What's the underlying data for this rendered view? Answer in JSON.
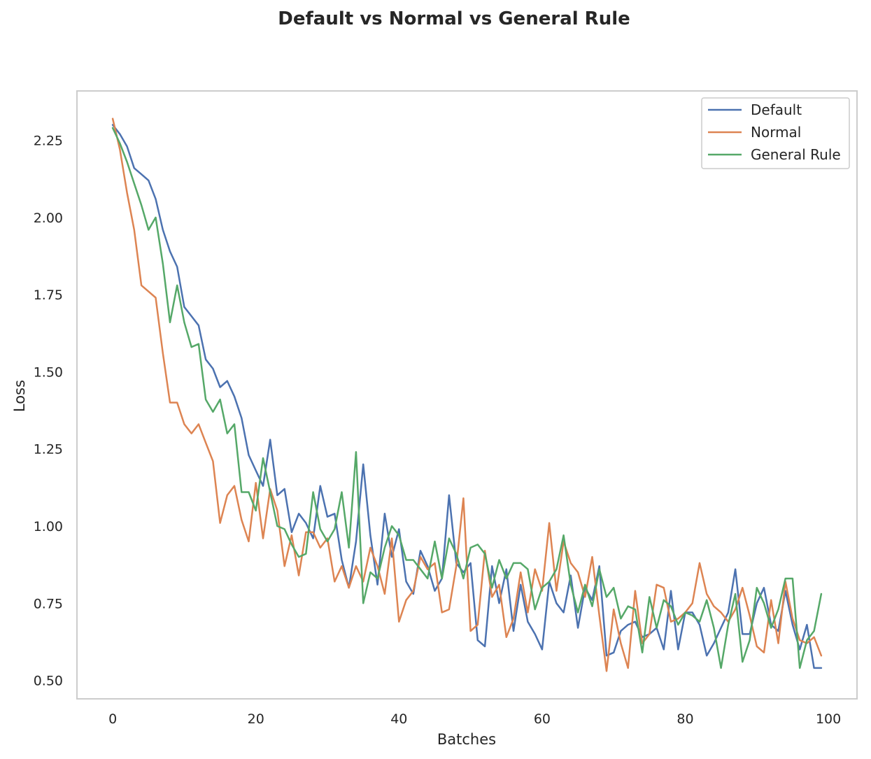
{
  "chart_data": {
    "type": "line",
    "title": "Default vs Normal vs General Rule",
    "xlabel": "Batches",
    "ylabel": "Loss",
    "xlim": [
      -5,
      104
    ],
    "ylim": [
      0.44,
      2.41
    ],
    "xticks": [
      0,
      20,
      40,
      60,
      80,
      100
    ],
    "xtick_labels": [
      "0",
      "20",
      "40",
      "60",
      "80",
      "100"
    ],
    "yticks": [
      0.5,
      0.75,
      1.0,
      1.25,
      1.5,
      1.75,
      2.0,
      2.25
    ],
    "ytick_labels": [
      "0.50",
      "0.75",
      "1.00",
      "1.25",
      "1.50",
      "1.75",
      "2.00",
      "2.25"
    ],
    "grid": false,
    "legend_position": "top-right",
    "x": [
      0,
      1,
      2,
      3,
      4,
      5,
      6,
      7,
      8,
      9,
      10,
      11,
      12,
      13,
      14,
      15,
      16,
      17,
      18,
      19,
      20,
      21,
      22,
      23,
      24,
      25,
      26,
      27,
      28,
      29,
      30,
      31,
      32,
      33,
      34,
      35,
      36,
      37,
      38,
      39,
      40,
      41,
      42,
      43,
      44,
      45,
      46,
      47,
      48,
      49,
      50,
      51,
      52,
      53,
      54,
      55,
      56,
      57,
      58,
      59,
      60,
      61,
      62,
      63,
      64,
      65,
      66,
      67,
      68,
      69,
      70,
      71,
      72,
      73,
      74,
      75,
      76,
      77,
      78,
      79,
      80,
      81,
      82,
      83,
      84,
      85,
      86,
      87,
      88,
      89,
      90,
      91,
      92,
      93,
      94,
      95,
      96,
      97,
      98,
      99
    ],
    "series": [
      {
        "name": "Default",
        "color": "#4c72b0",
        "values": [
          2.3,
          2.27,
          2.23,
          2.16,
          2.14,
          2.12,
          2.06,
          1.96,
          1.89,
          1.84,
          1.71,
          1.68,
          1.65,
          1.54,
          1.51,
          1.45,
          1.47,
          1.42,
          1.35,
          1.23,
          1.18,
          1.13,
          1.28,
          1.1,
          1.12,
          0.98,
          1.04,
          1.01,
          0.96,
          1.13,
          1.03,
          1.04,
          0.89,
          0.8,
          0.95,
          1.2,
          0.97,
          0.81,
          1.04,
          0.9,
          0.99,
          0.82,
          0.78,
          0.92,
          0.87,
          0.79,
          0.83,
          1.1,
          0.88,
          0.85,
          0.88,
          0.63,
          0.61,
          0.87,
          0.75,
          0.86,
          0.66,
          0.81,
          0.69,
          0.65,
          0.6,
          0.82,
          0.75,
          0.72,
          0.84,
          0.67,
          0.8,
          0.76,
          0.87,
          0.58,
          0.59,
          0.66,
          0.68,
          0.69,
          0.64,
          0.65,
          0.67,
          0.6,
          0.79,
          0.6,
          0.72,
          0.72,
          0.68,
          0.58,
          0.62,
          0.67,
          0.72,
          0.86,
          0.65,
          0.65,
          0.75,
          0.8,
          0.68,
          0.66,
          0.79,
          0.68,
          0.6,
          0.68,
          0.54,
          0.54
        ]
      },
      {
        "name": "Normal",
        "color": "#dd8452",
        "values": [
          2.32,
          2.22,
          2.08,
          1.96,
          1.78,
          1.76,
          1.74,
          1.56,
          1.4,
          1.4,
          1.33,
          1.3,
          1.33,
          1.27,
          1.21,
          1.01,
          1.1,
          1.13,
          1.02,
          0.95,
          1.14,
          0.96,
          1.12,
          1.05,
          0.87,
          0.97,
          0.84,
          0.98,
          0.98,
          0.93,
          0.96,
          0.82,
          0.87,
          0.8,
          0.87,
          0.82,
          0.93,
          0.87,
          0.78,
          0.96,
          0.69,
          0.76,
          0.79,
          0.9,
          0.86,
          0.88,
          0.72,
          0.73,
          0.87,
          1.09,
          0.66,
          0.68,
          0.92,
          0.77,
          0.81,
          0.64,
          0.7,
          0.85,
          0.72,
          0.86,
          0.79,
          1.01,
          0.79,
          0.95,
          0.88,
          0.85,
          0.77,
          0.9,
          0.71,
          0.53,
          0.73,
          0.62,
          0.54,
          0.79,
          0.62,
          0.65,
          0.81,
          0.8,
          0.69,
          0.7,
          0.72,
          0.75,
          0.88,
          0.78,
          0.74,
          0.72,
          0.69,
          0.73,
          0.8,
          0.71,
          0.61,
          0.59,
          0.76,
          0.62,
          0.82,
          0.7,
          0.63,
          0.62,
          0.64,
          0.58
        ]
      },
      {
        "name": "General Rule",
        "color": "#55a868",
        "values": [
          2.29,
          2.24,
          2.18,
          2.11,
          2.04,
          1.96,
          2.0,
          1.85,
          1.66,
          1.78,
          1.66,
          1.58,
          1.59,
          1.41,
          1.37,
          1.41,
          1.3,
          1.33,
          1.11,
          1.11,
          1.05,
          1.22,
          1.11,
          1.0,
          0.99,
          0.94,
          0.9,
          0.91,
          1.11,
          0.99,
          0.95,
          0.99,
          1.11,
          0.93,
          1.24,
          0.75,
          0.85,
          0.83,
          0.93,
          1.0,
          0.97,
          0.89,
          0.89,
          0.86,
          0.83,
          0.95,
          0.83,
          0.96,
          0.91,
          0.83,
          0.93,
          0.94,
          0.91,
          0.8,
          0.89,
          0.83,
          0.88,
          0.88,
          0.86,
          0.73,
          0.8,
          0.82,
          0.86,
          0.97,
          0.81,
          0.72,
          0.81,
          0.74,
          0.86,
          0.77,
          0.8,
          0.7,
          0.74,
          0.73,
          0.59,
          0.77,
          0.67,
          0.76,
          0.74,
          0.68,
          0.72,
          0.71,
          0.69,
          0.76,
          0.67,
          0.54,
          0.68,
          0.78,
          0.56,
          0.63,
          0.8,
          0.75,
          0.67,
          0.73,
          0.83,
          0.83,
          0.54,
          0.63,
          0.66,
          0.78
        ]
      }
    ]
  }
}
